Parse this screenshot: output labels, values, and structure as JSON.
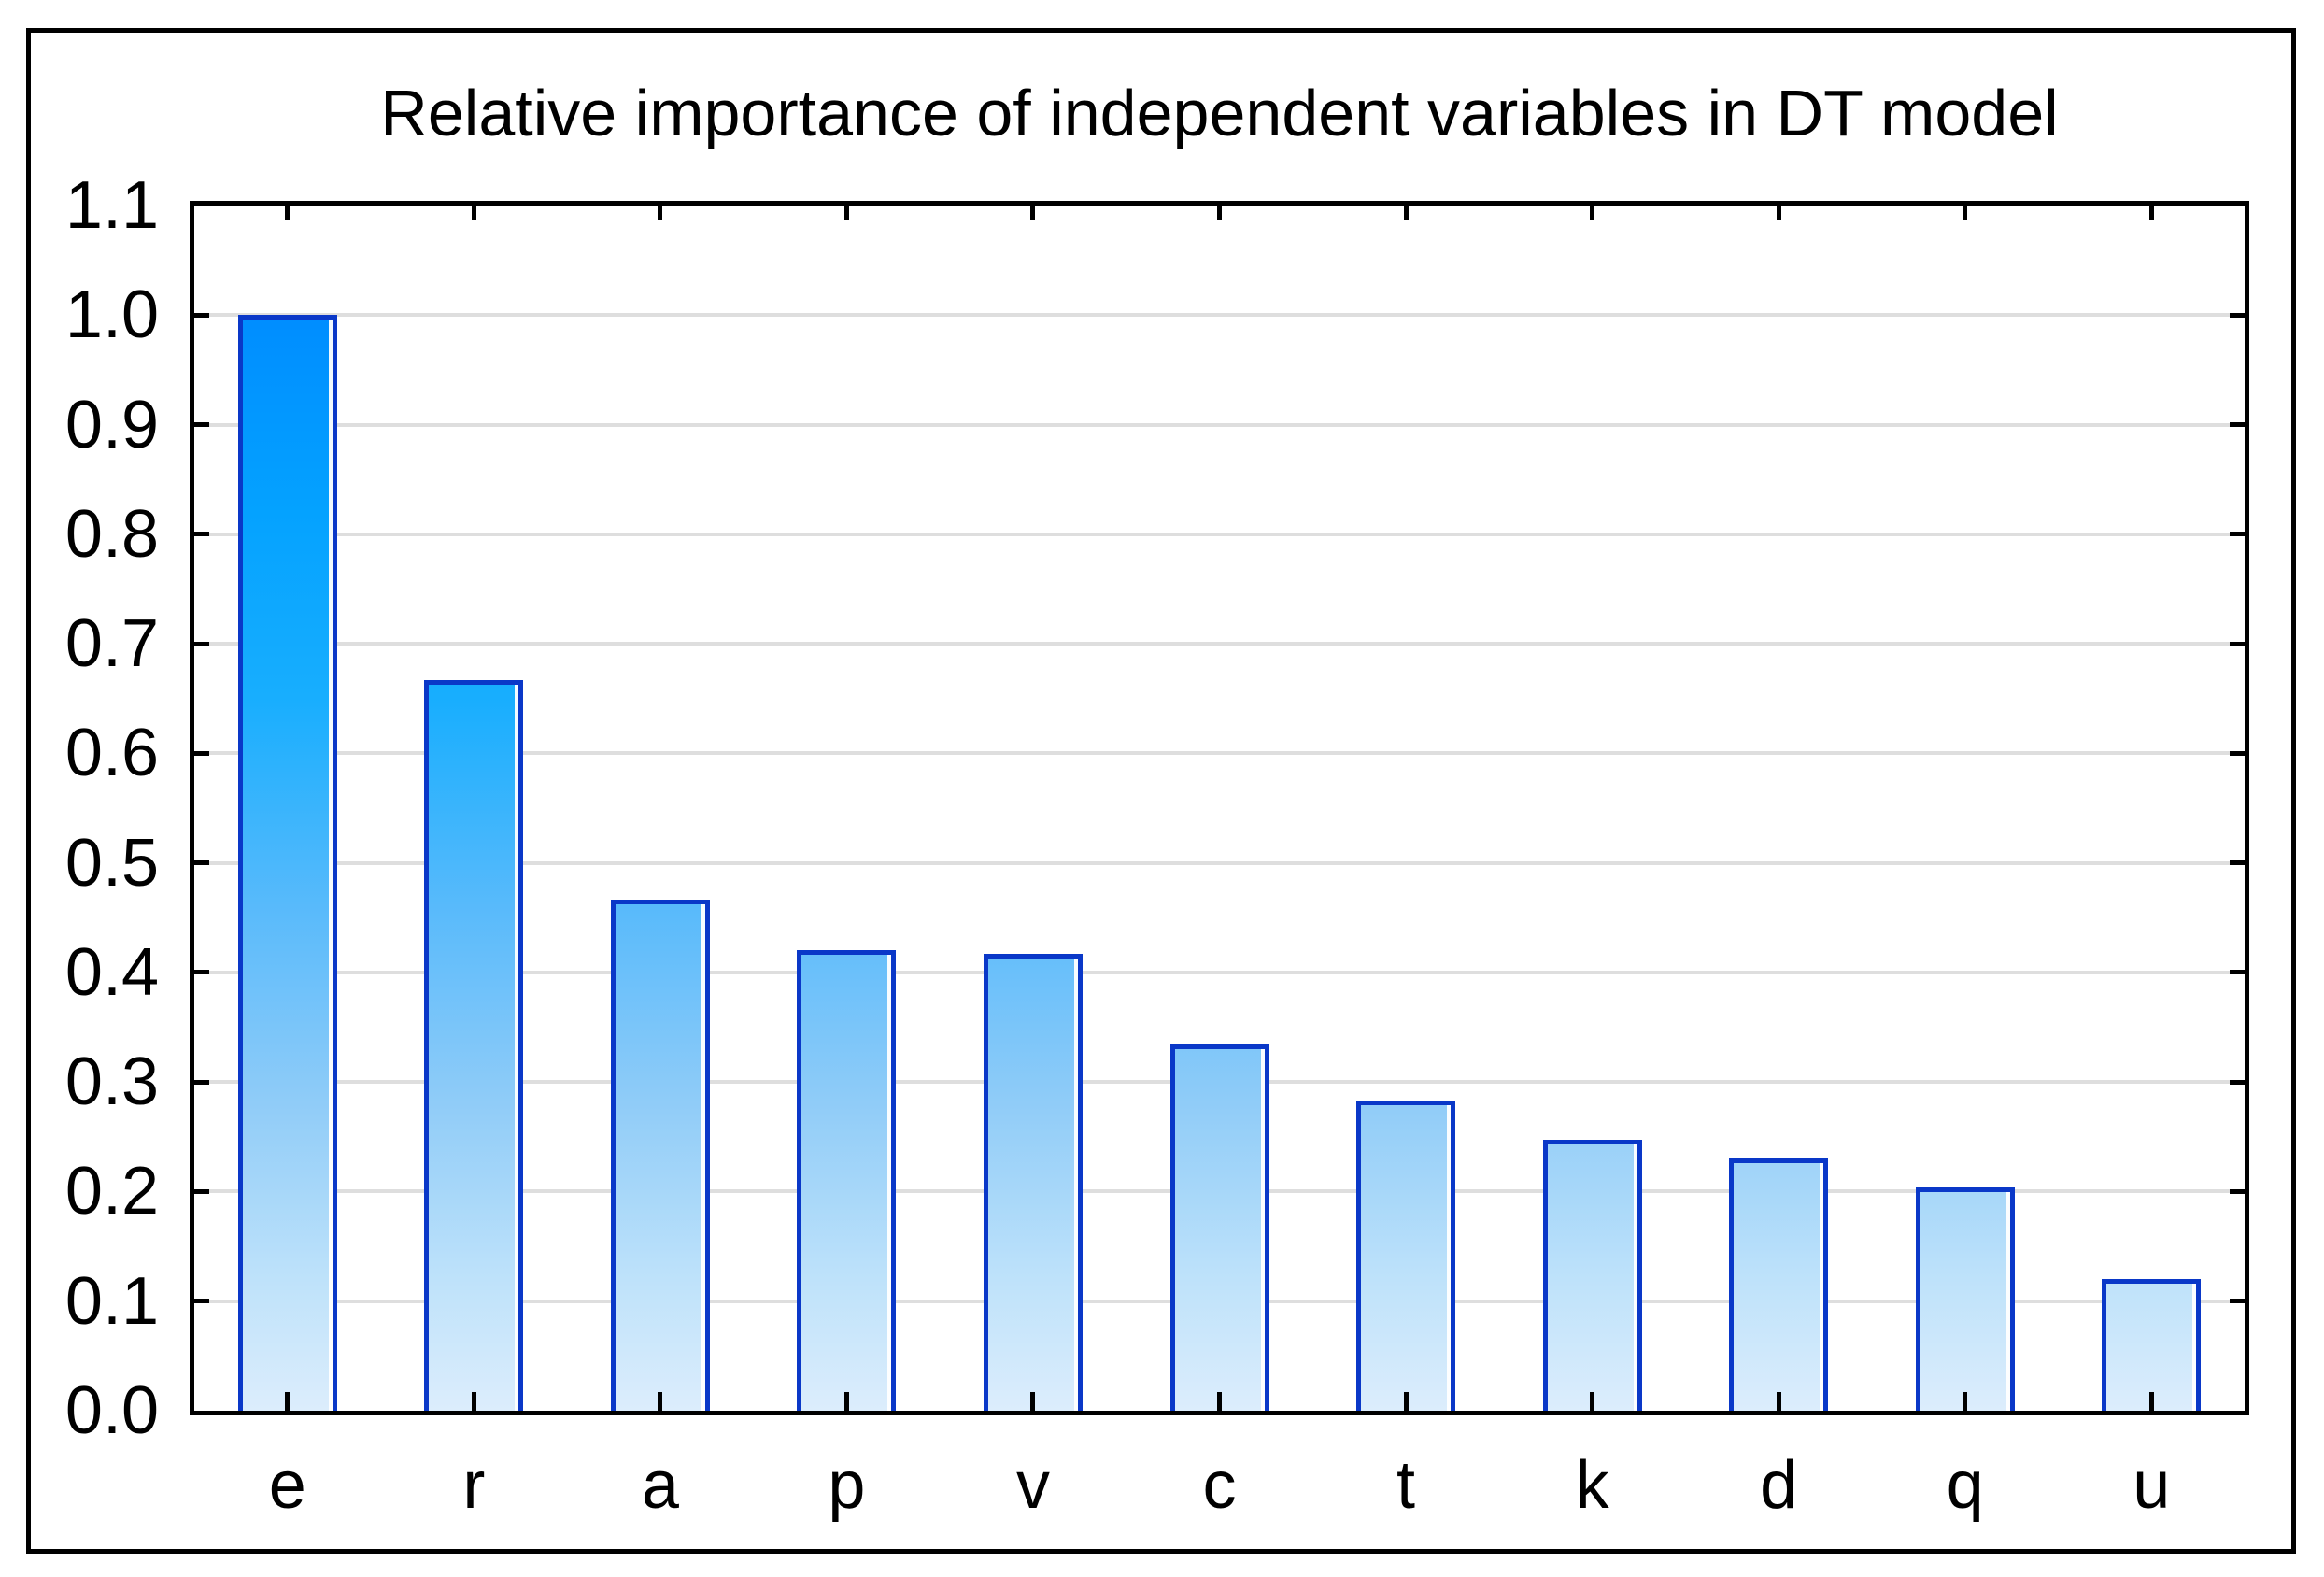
{
  "chart_data": {
    "type": "bar",
    "title": "Relative importance of independent variables in DT model",
    "categories": [
      "e",
      "r",
      "a",
      "p",
      "v",
      "c",
      "t",
      "k",
      "d",
      "q",
      "u"
    ],
    "values": [
      1.0,
      0.667,
      0.466,
      0.42,
      0.417,
      0.334,
      0.283,
      0.247,
      0.23,
      0.204,
      0.12
    ],
    "xlabel": "",
    "ylabel": "",
    "ylim": [
      0.0,
      1.1
    ],
    "ytick_step": 0.1,
    "yticks": [
      "1.1",
      "1.0",
      "0.9",
      "0.8",
      "0.7",
      "0.6",
      "0.5",
      "0.4",
      "0.3",
      "0.2",
      "0.1",
      "0.0"
    ],
    "grid": true,
    "legend": false,
    "colors": {
      "bar_border": "#0A38C8",
      "bar_gradient_bottom_to_top": [
        "#DCEDFC 0%",
        "#BEE2FA 12%",
        "#90CCF8 28%",
        "#58BAFB 46%",
        "#18AEFE 65%",
        "#04A2FF 82%",
        "#008DFF 100%"
      ],
      "gridline": "#DEDEDE",
      "axis": "#000000",
      "text": "#000000",
      "background": "#FFFFFF"
    }
  }
}
